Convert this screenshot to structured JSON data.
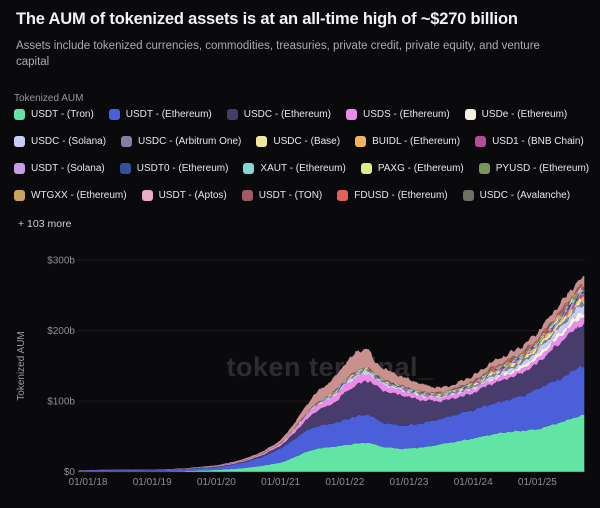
{
  "page": {
    "background": "#0A0A0C"
  },
  "header": {
    "title": "The AUM of tokenized assets is at an all-time high of ~$270 billion",
    "subtitle": "Assets include tokenized currencies, commodities, treasuries, private credit, private equity, and venture capital"
  },
  "legend": {
    "section_label": "Tokenized AUM",
    "more_label": "+ 103 more",
    "visible_count": 20,
    "per_row": 5
  },
  "chart_data": {
    "type": "area",
    "stacked": true,
    "title": "Tokenized AUM",
    "ylabel": "Tokenized AUM",
    "watermark": "token terminal_",
    "grid": true,
    "x_unit": "year",
    "xlim": [
      2017.85,
      2025.74
    ],
    "ylim": [
      0,
      300
    ],
    "x_ticks": [
      {
        "x": 2018,
        "label": "01/01/18"
      },
      {
        "x": 2019,
        "label": "01/01/19"
      },
      {
        "x": 2020,
        "label": "01/01/20"
      },
      {
        "x": 2021,
        "label": "01/01/21"
      },
      {
        "x": 2022,
        "label": "01/01/22"
      },
      {
        "x": 2023,
        "label": "01/01/23"
      },
      {
        "x": 2024,
        "label": "01/01/24"
      },
      {
        "x": 2025,
        "label": "01/01/25"
      }
    ],
    "y_ticks": [
      {
        "v": 0,
        "label": "$0"
      },
      {
        "v": 100,
        "label": "$100b"
      },
      {
        "v": 200,
        "label": "$200b"
      },
      {
        "v": 300,
        "label": "$300b"
      }
    ],
    "units": "$ billions",
    "series": [
      {
        "name": "USDT - (Tron)",
        "color": "#62E5A4",
        "points": [
          [
            2019.2,
            0
          ],
          [
            2019.5,
            0.8
          ],
          [
            2020,
            2.5
          ],
          [
            2020.3,
            4
          ],
          [
            2020.5,
            6
          ],
          [
            2020.75,
            9
          ],
          [
            2021,
            13
          ],
          [
            2021.1,
            16
          ],
          [
            2021.2,
            20
          ],
          [
            2021.3,
            24
          ],
          [
            2021.4,
            28
          ],
          [
            2021.5,
            31
          ],
          [
            2021.6,
            33
          ],
          [
            2021.9,
            36
          ],
          [
            2022,
            38
          ],
          [
            2022.2,
            40
          ],
          [
            2022.37,
            41
          ],
          [
            2022.45,
            39
          ],
          [
            2022.6,
            35
          ],
          [
            2022.9,
            32.5
          ],
          [
            2023,
            33
          ],
          [
            2023.2,
            34.5
          ],
          [
            2023.35,
            36.5
          ],
          [
            2023.5,
            39
          ],
          [
            2023.75,
            43
          ],
          [
            2024,
            47
          ],
          [
            2024.25,
            52
          ],
          [
            2024.5,
            56
          ],
          [
            2024.75,
            58
          ],
          [
            2025,
            60
          ],
          [
            2025.1,
            63
          ],
          [
            2025.2,
            65
          ],
          [
            2025.3,
            68
          ],
          [
            2025.4,
            71
          ],
          [
            2025.5,
            74
          ],
          [
            2025.67,
            80
          ]
        ]
      },
      {
        "name": "USDT - (Ethereum)",
        "color": "#4C5FDB",
        "points": [
          [
            2017.85,
            1.3
          ],
          [
            2018,
            1.8
          ],
          [
            2018.5,
            2.3
          ],
          [
            2019,
            2
          ],
          [
            2019.5,
            2.6
          ],
          [
            2020,
            4
          ],
          [
            2020.25,
            6
          ],
          [
            2020.5,
            9
          ],
          [
            2020.75,
            13
          ],
          [
            2021,
            20
          ],
          [
            2021.2,
            25
          ],
          [
            2021.4,
            30
          ],
          [
            2021.6,
            32
          ],
          [
            2021.9,
            34
          ],
          [
            2022,
            36
          ],
          [
            2022.2,
            39
          ],
          [
            2022.37,
            40
          ],
          [
            2022.45,
            37
          ],
          [
            2022.6,
            34
          ],
          [
            2022.9,
            32.5
          ],
          [
            2023,
            33
          ],
          [
            2023.2,
            34
          ],
          [
            2023.5,
            36
          ],
          [
            2023.75,
            38
          ],
          [
            2024,
            40
          ],
          [
            2024.25,
            43
          ],
          [
            2024.5,
            45
          ],
          [
            2024.75,
            49
          ],
          [
            2025,
            57
          ],
          [
            2025.2,
            60
          ],
          [
            2025.4,
            63
          ],
          [
            2025.67,
            70
          ]
        ]
      },
      {
        "name": "USDC - (Ethereum)",
        "color": "#483C6C",
        "points": [
          [
            2018.6,
            0.1
          ],
          [
            2019,
            0.3
          ],
          [
            2019.5,
            0.4
          ],
          [
            2020,
            0.6
          ],
          [
            2020.5,
            1.2
          ],
          [
            2020.75,
            2.5
          ],
          [
            2021,
            4
          ],
          [
            2021.1,
            6
          ],
          [
            2021.2,
            9
          ],
          [
            2021.3,
            12
          ],
          [
            2021.4,
            15
          ],
          [
            2021.5,
            20
          ],
          [
            2021.6,
            23
          ],
          [
            2021.75,
            26
          ],
          [
            2021.9,
            32
          ],
          [
            2022,
            38
          ],
          [
            2022.1,
            42
          ],
          [
            2022.2,
            45
          ],
          [
            2022.3,
            47
          ],
          [
            2022.37,
            48
          ],
          [
            2022.6,
            46
          ],
          [
            2022.9,
            43
          ],
          [
            2023,
            40
          ],
          [
            2023.2,
            33
          ],
          [
            2023.35,
            29
          ],
          [
            2023.5,
            25
          ],
          [
            2023.75,
            24
          ],
          [
            2024,
            24
          ],
          [
            2024.25,
            28
          ],
          [
            2024.5,
            30
          ],
          [
            2024.75,
            32
          ],
          [
            2025,
            36
          ],
          [
            2025.1,
            41
          ],
          [
            2025.2,
            45
          ],
          [
            2025.3,
            49
          ],
          [
            2025.4,
            52
          ],
          [
            2025.5,
            55
          ],
          [
            2025.67,
            58
          ]
        ]
      },
      {
        "name": "USDS - (Ethereum)",
        "color": "#EC8BEC",
        "points": [
          [
            2019.5,
            0.2
          ],
          [
            2020,
            0.7
          ],
          [
            2020.5,
            1.2
          ],
          [
            2021,
            2.5
          ],
          [
            2021.2,
            4.5
          ],
          [
            2021.4,
            6.5
          ],
          [
            2021.6,
            7.5
          ],
          [
            2022,
            10
          ],
          [
            2022.2,
            10.5
          ],
          [
            2022.37,
            9.5
          ],
          [
            2022.45,
            8.5
          ],
          [
            2022.75,
            7
          ],
          [
            2023,
            5.5
          ],
          [
            2023.5,
            4.5
          ],
          [
            2024,
            5.5
          ],
          [
            2024.5,
            5.5
          ],
          [
            2024.75,
            6
          ],
          [
            2025,
            7
          ],
          [
            2025.3,
            8.5
          ],
          [
            2025.67,
            10
          ]
        ]
      },
      {
        "name": "USDe - (Ethereum)",
        "color": "#F5F2E4",
        "points": [
          [
            2024.1,
            0
          ],
          [
            2024.25,
            2
          ],
          [
            2024.5,
            3
          ],
          [
            2024.75,
            4
          ],
          [
            2025,
            6
          ],
          [
            2025.2,
            5.5
          ],
          [
            2025.4,
            6
          ],
          [
            2025.67,
            9
          ]
        ]
      },
      {
        "name": "USDC - (Solana)",
        "color": "#C9CDF6",
        "points": [
          [
            2021.2,
            0
          ],
          [
            2021.4,
            1
          ],
          [
            2021.6,
            2
          ],
          [
            2021.9,
            3
          ],
          [
            2022,
            3.5
          ],
          [
            2022.2,
            4
          ],
          [
            2022.45,
            3.5
          ],
          [
            2022.6,
            3
          ],
          [
            2023,
            2.5
          ],
          [
            2023.5,
            2
          ],
          [
            2024,
            2.5
          ],
          [
            2024.5,
            3.5
          ],
          [
            2025,
            5
          ],
          [
            2025.3,
            7
          ],
          [
            2025.67,
            9
          ]
        ]
      },
      {
        "name": "USDC - (Arbitrum One)",
        "color": "#827FA0",
        "points": [
          [
            2021.7,
            0
          ],
          [
            2022,
            1
          ],
          [
            2022.3,
            1.5
          ],
          [
            2023,
            1
          ],
          [
            2024,
            2
          ],
          [
            2025,
            2.5
          ],
          [
            2025.67,
            3
          ]
        ]
      },
      {
        "name": "USDC - (Base)",
        "color": "#EFE9A0",
        "points": [
          [
            2023.6,
            0
          ],
          [
            2024,
            1
          ],
          [
            2024.5,
            2
          ],
          [
            2025,
            3
          ],
          [
            2025.67,
            4
          ]
        ]
      },
      {
        "name": "BUIDL - (Ethereum)",
        "color": "#F0B45A",
        "points": [
          [
            2024.2,
            0
          ],
          [
            2024.5,
            0.5
          ],
          [
            2025,
            1
          ],
          [
            2025.2,
            2
          ],
          [
            2025.67,
            3
          ]
        ]
      },
      {
        "name": "USD1 - (BNB Chain)",
        "color": "#B44E94",
        "points": [
          [
            2025.25,
            0
          ],
          [
            2025.4,
            2
          ],
          [
            2025.67,
            2.5
          ]
        ]
      },
      {
        "name": "USDT - (Solana)",
        "color": "#C89CE9",
        "points": [
          [
            2021.3,
            0
          ],
          [
            2021.6,
            1
          ],
          [
            2022,
            1.8
          ],
          [
            2022.45,
            1.2
          ],
          [
            2023,
            1
          ],
          [
            2024,
            1.5
          ],
          [
            2025,
            2
          ],
          [
            2025.67,
            2.5
          ]
        ]
      },
      {
        "name": "USDT0 - (Ethereum)",
        "color": "#32519A",
        "points": [
          [
            2025,
            0
          ],
          [
            2025.2,
            1
          ],
          [
            2025.67,
            1.8
          ]
        ]
      },
      {
        "name": "XAUT - (Ethereum)",
        "color": "#82D8D4",
        "points": [
          [
            2020,
            0
          ],
          [
            2020.5,
            0.3
          ],
          [
            2021,
            0.4
          ],
          [
            2022,
            0.5
          ],
          [
            2023,
            0.5
          ],
          [
            2024,
            0.6
          ],
          [
            2025,
            0.8
          ],
          [
            2025.67,
            1.5
          ]
        ]
      },
      {
        "name": "PAXG - (Ethereum)",
        "color": "#DFEC86",
        "points": [
          [
            2020,
            0
          ],
          [
            2021,
            0.3
          ],
          [
            2022,
            0.6
          ],
          [
            2023,
            0.5
          ],
          [
            2024,
            0.5
          ],
          [
            2025,
            0.7
          ],
          [
            2025.67,
            1.2
          ]
        ]
      },
      {
        "name": "PYUSD - (Ethereum)",
        "color": "#78965A",
        "points": [
          [
            2023.6,
            0
          ],
          [
            2024,
            0.3
          ],
          [
            2024.5,
            0.5
          ],
          [
            2025,
            0.6
          ],
          [
            2025.67,
            1
          ]
        ]
      },
      {
        "name": "WTGXX - (Ethereum)",
        "color": "#C8A55C",
        "points": [
          [
            2024,
            0
          ],
          [
            2024.5,
            0.5
          ],
          [
            2025,
            0.8
          ],
          [
            2025.67,
            1
          ]
        ]
      },
      {
        "name": "USDT - (Aptos)",
        "color": "#EBADC6",
        "points": [
          [
            2024.5,
            0
          ],
          [
            2025,
            0.5
          ],
          [
            2025.67,
            1
          ]
        ]
      },
      {
        "name": "USDT - (TON)",
        "color": "#A05B64",
        "points": [
          [
            2023.3,
            0
          ],
          [
            2023.75,
            0.5
          ],
          [
            2024.5,
            1
          ],
          [
            2025,
            1.2
          ],
          [
            2025.67,
            1.4
          ]
        ]
      },
      {
        "name": "FDUSD - (Ethereum)",
        "color": "#E6615A",
        "points": [
          [
            2023.5,
            0
          ],
          [
            2023.9,
            1
          ],
          [
            2024.3,
            2.5
          ],
          [
            2024.75,
            2
          ],
          [
            2025,
            2
          ],
          [
            2025.67,
            1.5
          ]
        ]
      },
      {
        "name": "USDC - (Avalanche)",
        "color": "#6C7160",
        "points": [
          [
            2021.6,
            0
          ],
          [
            2022,
            1
          ],
          [
            2022.4,
            1.2
          ],
          [
            2023,
            0.8
          ],
          [
            2024,
            0.8
          ],
          [
            2025,
            1
          ],
          [
            2025.67,
            1.2
          ]
        ]
      },
      {
        "name": "Other (+103 more, aggregated)",
        "color": "#C9908E",
        "in_legend": false,
        "points": [
          [
            2017.85,
            0.2
          ],
          [
            2019,
            0.5
          ],
          [
            2020,
            1.2
          ],
          [
            2020.75,
            3
          ],
          [
            2021,
            4.5
          ],
          [
            2021.2,
            8
          ],
          [
            2021.4,
            12
          ],
          [
            2021.6,
            16
          ],
          [
            2021.9,
            21
          ],
          [
            2022,
            23
          ],
          [
            2022.2,
            27
          ],
          [
            2022.37,
            28
          ],
          [
            2022.45,
            17
          ],
          [
            2022.6,
            16
          ],
          [
            2022.9,
            14
          ],
          [
            2023,
            13
          ],
          [
            2023.2,
            11
          ],
          [
            2023.35,
            9
          ],
          [
            2023.5,
            7
          ],
          [
            2023.75,
            7
          ],
          [
            2024,
            8
          ],
          [
            2024.5,
            9
          ],
          [
            2025,
            10
          ],
          [
            2025.3,
            11
          ],
          [
            2025.67,
            11
          ]
        ]
      }
    ]
  }
}
